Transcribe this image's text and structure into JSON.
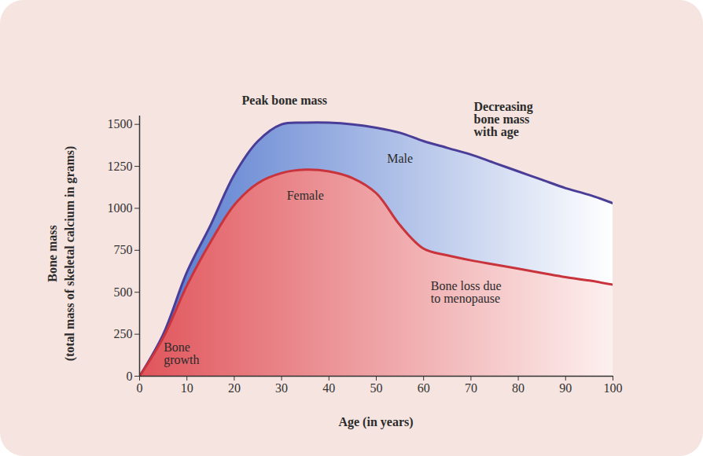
{
  "chart_data": {
    "type": "area",
    "x_label": "Age (in years)",
    "y_label": "Bone mass (total mass of skeletal calcium in grams)",
    "x": [
      0,
      5,
      10,
      15,
      20,
      25,
      30,
      35,
      40,
      45,
      50,
      55,
      60,
      65,
      70,
      75,
      80,
      85,
      90,
      95,
      100
    ],
    "series": [
      {
        "name": "Male",
        "color": "#4a3d98",
        "label_x": 55,
        "values": [
          0,
          250,
          620,
          900,
          1200,
          1400,
          1500,
          1510,
          1510,
          1500,
          1480,
          1450,
          1400,
          1360,
          1320,
          1270,
          1220,
          1170,
          1120,
          1080,
          1030
        ]
      },
      {
        "name": "Female",
        "color": "#c9333b",
        "label_x": 35,
        "values": [
          0,
          230,
          540,
          800,
          1020,
          1150,
          1210,
          1230,
          1220,
          1180,
          1090,
          900,
          760,
          720,
          690,
          665,
          640,
          615,
          590,
          570,
          545
        ]
      }
    ],
    "xlim": [
      0,
      100
    ],
    "xticks": [
      0,
      10,
      20,
      30,
      40,
      50,
      60,
      70,
      80,
      90,
      100
    ],
    "ylim": [
      0,
      1550
    ],
    "yticks": [
      0,
      250,
      500,
      750,
      1000,
      1250,
      1500
    ],
    "grid": false,
    "annotations": [
      {
        "text": "Peak bone mass",
        "x": 21.6,
        "y": 1640
      },
      {
        "text": "Decreasing bone mass with age",
        "x": 70.6,
        "y": 1528
      },
      {
        "text": "Bone loss due to menopause",
        "x": 61.5,
        "y": 497
      },
      {
        "text": "Bone growth",
        "x": 5.1,
        "y": 136
      }
    ]
  }
}
